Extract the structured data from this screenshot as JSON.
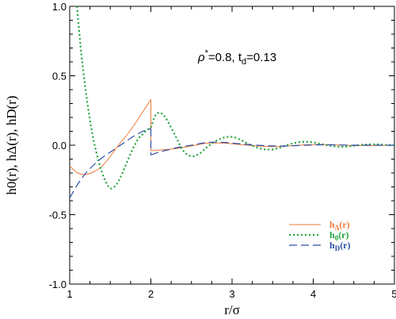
{
  "chart_data": {
    "type": "line",
    "title": "",
    "xlabel": "r/σ",
    "ylabel": "h0(r),  hΔ(r),  hD(r)",
    "xlim": [
      1,
      5
    ],
    "ylim": [
      -1.0,
      1.0
    ],
    "xticks": [
      1,
      2,
      3,
      4,
      5
    ],
    "yticks": [
      -1.0,
      -0.5,
      0.0,
      0.5,
      1.0
    ],
    "xtick_labels": [
      "1",
      "2",
      "3",
      "4",
      "5"
    ],
    "ytick_labels": [
      "-1.0",
      "-0.5",
      "0.0",
      "0.5",
      "1.0"
    ],
    "grid": false,
    "legend_position": "lower-right",
    "annotation": {
      "rho_sym": "ρ",
      "rho_sup": "*",
      "rho_val": "=0.8,  t",
      "t_sub": "d",
      "t_val": "=0.13"
    },
    "series": [
      {
        "name": "hΔ(r)",
        "legend_main": "h",
        "legend_sub": "Δ",
        "legend_tail": "(r)",
        "color": "#f07a3a",
        "dash": "solid",
        "x": [
          1.0,
          1.1,
          1.2,
          1.3,
          1.4,
          1.5,
          1.6,
          1.7,
          1.8,
          1.9,
          2.0,
          2.0,
          2.1,
          2.3,
          2.5,
          2.7,
          2.9,
          3.1,
          3.3,
          3.5,
          3.7,
          3.9,
          4.1,
          4.3,
          4.5,
          4.7,
          5.0
        ],
        "y": [
          -0.15,
          -0.2,
          -0.21,
          -0.19,
          -0.15,
          -0.08,
          0.0,
          0.07,
          0.15,
          0.24,
          0.33,
          -0.04,
          -0.035,
          -0.025,
          -0.005,
          0.015,
          0.015,
          0.005,
          -0.005,
          -0.01,
          -0.005,
          0.003,
          0.005,
          0.002,
          -0.002,
          -0.002,
          0.0
        ]
      },
      {
        "name": "h0(r)",
        "legend_main": "h",
        "legend_sub": "0",
        "legend_tail": "(r)",
        "color": "#22a33a",
        "dash": "dotted",
        "x": [
          1.09,
          1.12,
          1.15,
          1.2,
          1.25,
          1.3,
          1.35,
          1.4,
          1.45,
          1.5,
          1.55,
          1.6,
          1.65,
          1.7,
          1.75,
          1.8,
          1.85,
          1.9,
          1.95,
          2.0,
          2.05,
          2.1,
          2.15,
          2.2,
          2.3,
          2.4,
          2.5,
          2.6,
          2.7,
          2.8,
          2.9,
          3.0,
          3.1,
          3.2,
          3.3,
          3.4,
          3.5,
          3.6,
          3.7,
          3.8,
          3.9,
          4.0,
          4.1,
          4.2,
          4.3,
          4.4,
          4.5,
          4.6,
          4.7,
          4.8,
          4.9,
          5.0
        ],
        "y": [
          1.0,
          0.8,
          0.62,
          0.38,
          0.18,
          0.02,
          -0.1,
          -0.2,
          -0.27,
          -0.31,
          -0.3,
          -0.26,
          -0.2,
          -0.13,
          -0.06,
          0.0,
          0.05,
          0.08,
          0.11,
          0.13,
          0.21,
          0.235,
          0.22,
          0.18,
          0.07,
          -0.04,
          -0.08,
          -0.06,
          -0.01,
          0.03,
          0.055,
          0.06,
          0.04,
          0.01,
          -0.015,
          -0.03,
          -0.03,
          -0.015,
          0.005,
          0.02,
          0.025,
          0.02,
          0.008,
          -0.003,
          -0.01,
          -0.01,
          -0.005,
          0.003,
          0.006,
          0.006,
          0.002,
          0.0
        ]
      },
      {
        "name": "hD(r)",
        "legend_main": "h",
        "legend_sub": "D",
        "legend_tail": "(r)",
        "color": "#2e4fa8",
        "dash": "dashed",
        "x": [
          1.0,
          1.1,
          1.2,
          1.3,
          1.4,
          1.5,
          1.6,
          1.7,
          1.8,
          1.9,
          2.0,
          2.0,
          2.1,
          2.2,
          2.3,
          2.5,
          2.7,
          2.9,
          3.1,
          3.3,
          3.5,
          3.7,
          3.9,
          4.1,
          4.3,
          4.5,
          4.7,
          5.0
        ],
        "y": [
          -0.38,
          -0.28,
          -0.2,
          -0.14,
          -0.09,
          -0.05,
          -0.01,
          0.03,
          0.07,
          0.1,
          0.12,
          -0.07,
          -0.05,
          -0.035,
          -0.02,
          0.0,
          0.02,
          0.02,
          0.01,
          0.0,
          -0.005,
          -0.005,
          0.0,
          0.003,
          0.002,
          0.0,
          0.0,
          0.0
        ]
      }
    ]
  }
}
